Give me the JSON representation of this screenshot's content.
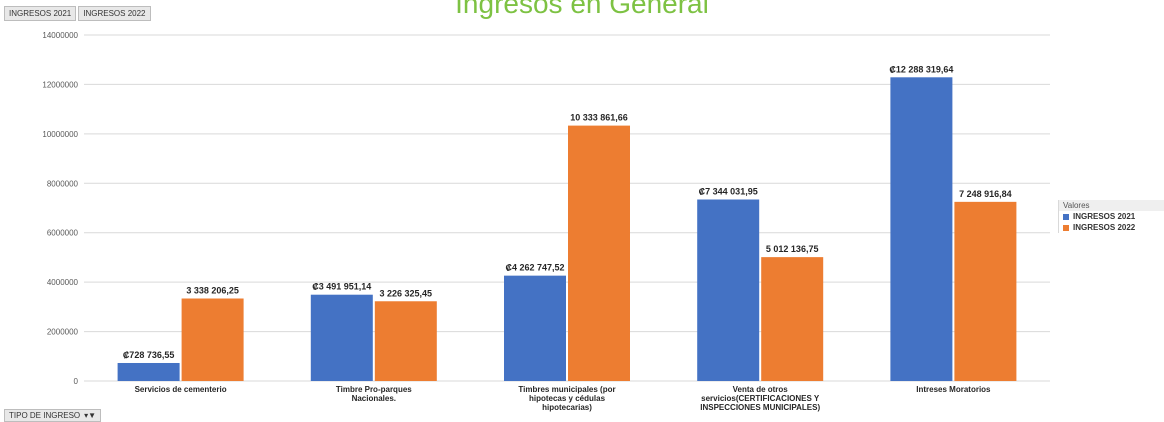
{
  "field_buttons": [
    "INGRESOS 2021",
    "INGRESOS 2022"
  ],
  "title": "Ingresos en General",
  "filter": {
    "label": "TIPO DE INGRESO",
    "icon": "filter-dropdown-icon"
  },
  "legend": {
    "header": "Valores",
    "items": [
      {
        "label": "INGRESOS 2021",
        "color": "#4472c4"
      },
      {
        "label": "INGRESOS 2022",
        "color": "#ed7d31"
      }
    ]
  },
  "chart_data": {
    "type": "bar",
    "title": "Ingresos en General",
    "categories": [
      [
        "Servicios de cementerio"
      ],
      [
        "Timbre Pro-parques",
        "Nacionales."
      ],
      [
        "Timbres municipales (por",
        "hipotecas y cédulas",
        "hipotecarias)"
      ],
      [
        "Venta de otros",
        "servicios(CERTIFICACIONES Y",
        "INSPECCIONES MUNICIPALES)"
      ],
      [
        "Intreses Moratorios"
      ]
    ],
    "series": [
      {
        "name": "INGRESOS 2021",
        "color": "#4472c4",
        "values": [
          728736.55,
          3491951.14,
          4262747.52,
          7344031.95,
          12288319.64
        ],
        "labels": [
          "₡728 736,55",
          "₡3 491 951,14",
          "₡4 262 747,52",
          "₡7 344 031,95",
          "₡12 288 319,64"
        ]
      },
      {
        "name": "INGRESOS 2022",
        "color": "#ed7d31",
        "values": [
          3338206.25,
          3226325.45,
          10333861.66,
          5012136.75,
          7248916.84
        ],
        "labels": [
          "3 338 206,25",
          "3 226 325,45",
          "10 333 861,66",
          "5 012 136,75",
          "7 248 916,84"
        ]
      }
    ],
    "yticks": [
      "0",
      "2000000",
      "4000000",
      "6000000",
      "8000000",
      "10000000",
      "12000000",
      "14000000"
    ],
    "ylim": [
      0,
      14000000
    ],
    "grid": true,
    "legend_position": "right"
  }
}
